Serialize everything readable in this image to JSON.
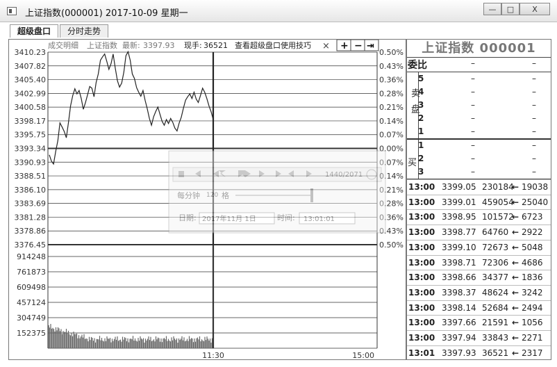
{
  "window": {
    "title": "上证指数(000001) 2017-10-09 星期一",
    "controls": {
      "minimize": "—",
      "maximize": "□",
      "close": "X"
    }
  },
  "tabs": [
    {
      "label": "超级盘口",
      "active": true
    },
    {
      "label": "分时走势",
      "active": false
    }
  ],
  "chart_header": {
    "detail_label": "成交明细",
    "index_label": "上证指数",
    "latest_label": "最新:",
    "latest_value": "3397.93",
    "volume_label": "现手:",
    "volume_value": "36521",
    "tips_link": "查看超级盘口使用技巧",
    "close": "×",
    "zoom_in": "+",
    "zoom_out": "−",
    "pin": "⇥"
  },
  "price_axis": [
    "3410.23",
    "3407.82",
    "3405.40",
    "3402.99",
    "3400.58",
    "3398.17",
    "3395.75",
    "3393.34",
    "3390.93",
    "3388.51",
    "3386.10",
    "3383.69",
    "3381.28",
    "3378.86",
    "3376.45"
  ],
  "pct_axis": [
    "0.50%",
    "0.43%",
    "0.36%",
    "0.28%",
    "0.21%",
    "0.14%",
    "0.07%",
    "0.00%",
    "0.07%",
    "0.14%",
    "0.21%",
    "0.28%",
    "0.36%",
    "0.43%",
    "0.50%"
  ],
  "volume_axis": [
    "914248",
    "761873",
    "609498",
    "457124",
    "304749",
    "152375"
  ],
  "time_axis": [
    "11:30",
    "15:00"
  ],
  "playback": {
    "speed_prefix": "每分钟",
    "speed_value": "120",
    "speed_unit": "格",
    "counter": "1440/2071",
    "date_label": "日期:",
    "date_value": "2017年11月 1日",
    "time_label": "时间:",
    "time_value": "13:01:01"
  },
  "right_panel": {
    "title": "上证指数 000001",
    "ratio_label": "委比",
    "ratio_v1": "–",
    "ratio_v2": "–",
    "sell_label": "卖盘",
    "buy_label": "买",
    "sell_rows": [
      {
        "level": "5",
        "v1": "–",
        "v2": "–"
      },
      {
        "level": "4",
        "v1": "–",
        "v2": "–"
      },
      {
        "level": "3",
        "v1": "–",
        "v2": "–"
      },
      {
        "level": "2",
        "v1": "–",
        "v2": "–"
      },
      {
        "level": "1",
        "v1": "–",
        "v2": "–"
      }
    ],
    "buy_rows": [
      {
        "level": "1",
        "v1": "–",
        "v2": "–"
      },
      {
        "level": "2",
        "v1": "–",
        "v2": "–"
      },
      {
        "level": "3",
        "v1": "–",
        "v2": "–"
      }
    ],
    "ticks": [
      {
        "time": "13:00",
        "price": "3399.05",
        "vol": "230184",
        "arrow": "←",
        "amt": "19038"
      },
      {
        "time": "13:00",
        "price": "3399.01",
        "vol": "459054",
        "arrow": "←",
        "amt": "25040"
      },
      {
        "time": "13:00",
        "price": "3398.95",
        "vol": "101572",
        "arrow": "←",
        "amt": "6723"
      },
      {
        "time": "13:00",
        "price": "3398.77",
        "vol": "64760",
        "arrow": "←",
        "amt": "2922"
      },
      {
        "time": "13:00",
        "price": "3399.10",
        "vol": "72673",
        "arrow": "←",
        "amt": "5048"
      },
      {
        "time": "13:00",
        "price": "3398.71",
        "vol": "72306",
        "arrow": "←",
        "amt": "4686"
      },
      {
        "time": "13:00",
        "price": "3398.66",
        "vol": "34377",
        "arrow": "←",
        "amt": "1836"
      },
      {
        "time": "13:00",
        "price": "3398.37",
        "vol": "48624",
        "arrow": "←",
        "amt": "3242"
      },
      {
        "time": "13:00",
        "price": "3398.14",
        "vol": "52684",
        "arrow": "←",
        "amt": "2494"
      },
      {
        "time": "13:00",
        "price": "3397.66",
        "vol": "21591",
        "arrow": "←",
        "amt": "1056"
      },
      {
        "time": "13:00",
        "price": "3397.94",
        "vol": "33843",
        "arrow": "←",
        "amt": "2271"
      },
      {
        "time": "13:01",
        "price": "3397.93",
        "vol": "36521",
        "arrow": "←",
        "amt": "2317"
      }
    ]
  },
  "colors": {
    "line": "#222222",
    "grid": "#333333",
    "volume": "#555555",
    "panel_title": "#777777"
  }
}
